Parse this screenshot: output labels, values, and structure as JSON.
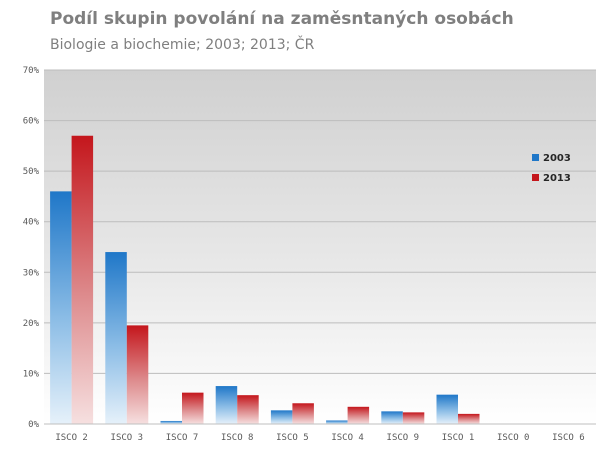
{
  "chart_data": {
    "type": "bar",
    "title": "Podíl skupin povolání na zaměsntaných osobách",
    "subtitle": "Biologie a biochemie;  2003; 2013; ČR",
    "categories": [
      "ISCO 2",
      "ISCO 3",
      "ISCO 7",
      "ISCO 8",
      "ISCO 5",
      "ISCO 4",
      "ISCO 9",
      "ISCO 1",
      "ISCO 0",
      "ISCO 6"
    ],
    "series": [
      {
        "name": "2003",
        "values": [
          46.0,
          34.0,
          0.6,
          7.5,
          2.7,
          0.7,
          2.5,
          5.8,
          0,
          0
        ],
        "color": "#1f77c8"
      },
      {
        "name": "2013",
        "values": [
          57.0,
          19.5,
          6.2,
          5.7,
          4.1,
          3.4,
          2.3,
          2.0,
          0,
          0
        ],
        "color": "#c4161c"
      }
    ],
    "y_ticks": [
      "0%",
      "10%",
      "20%",
      "30%",
      "40%",
      "50%",
      "60%",
      "70%"
    ],
    "ylim": [
      0,
      70
    ],
    "grid": true,
    "legend_position": "right"
  }
}
